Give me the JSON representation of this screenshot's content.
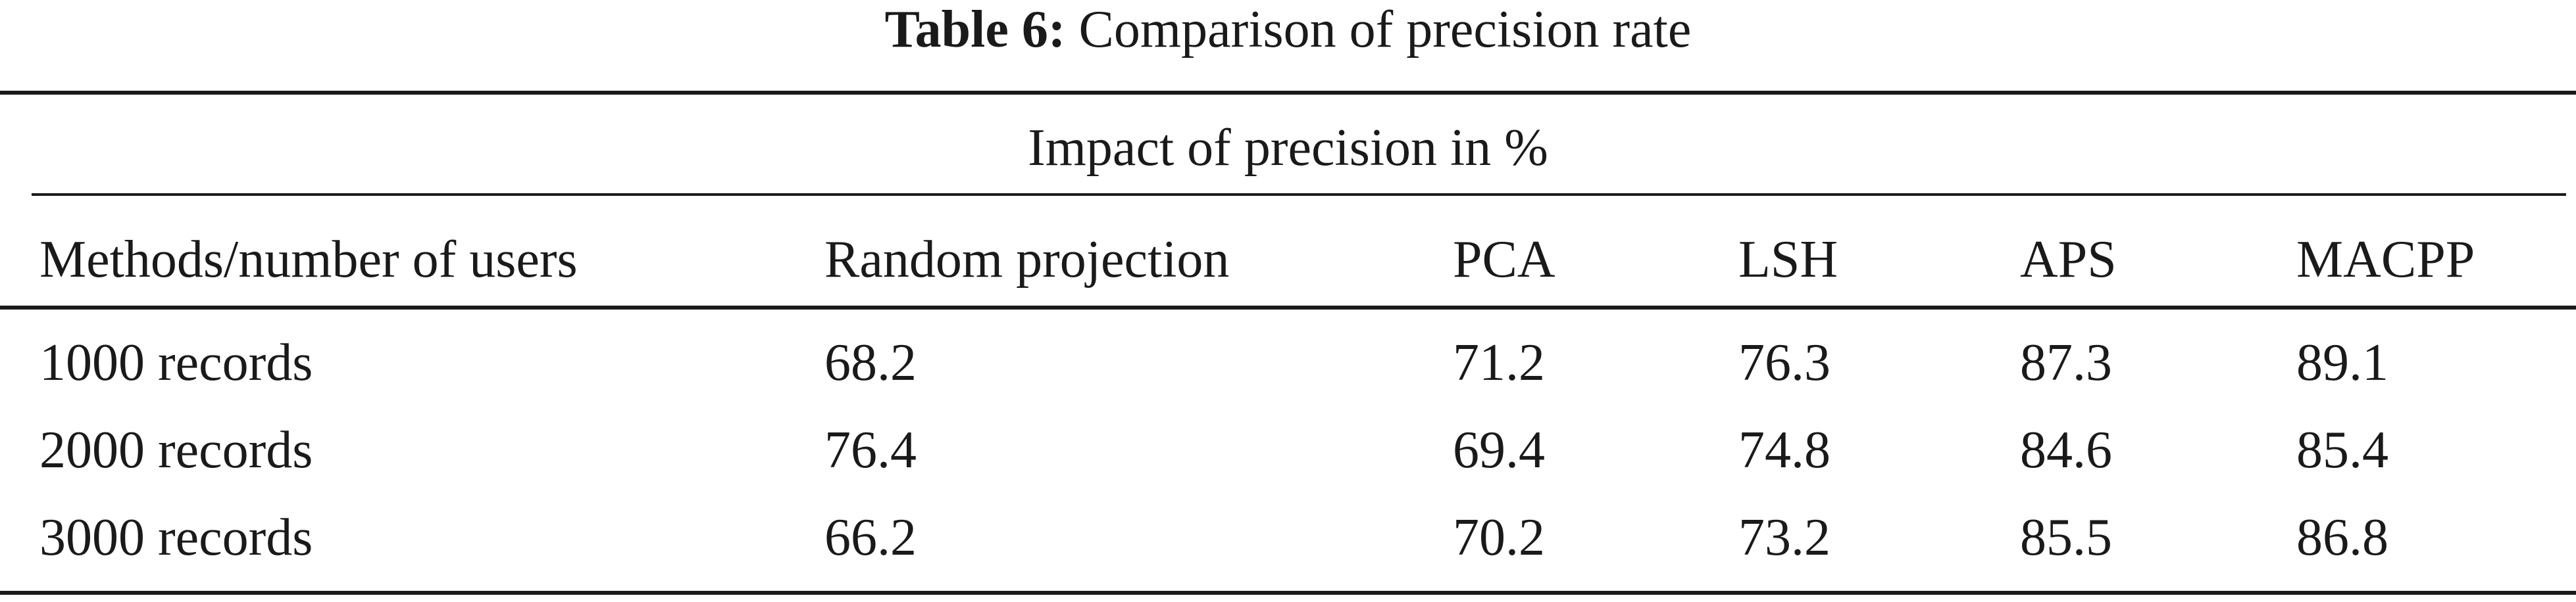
{
  "caption": {
    "label": "Table 6:",
    "title": "Comparison of precision rate"
  },
  "table": {
    "span_header": "Impact of precision in %",
    "columns": [
      "Methods/number of users",
      "Random projection",
      "PCA",
      "LSH",
      "APS",
      "MACPP"
    ],
    "rows": [
      [
        "1000 records",
        "68.2",
        "71.2",
        "76.3",
        "87.3",
        "89.1"
      ],
      [
        "2000 records",
        "76.4",
        "69.4",
        "74.8",
        "84.6",
        "85.4"
      ],
      [
        "3000 records",
        "66.2",
        "70.2",
        "73.2",
        "85.5",
        "86.8"
      ]
    ]
  }
}
